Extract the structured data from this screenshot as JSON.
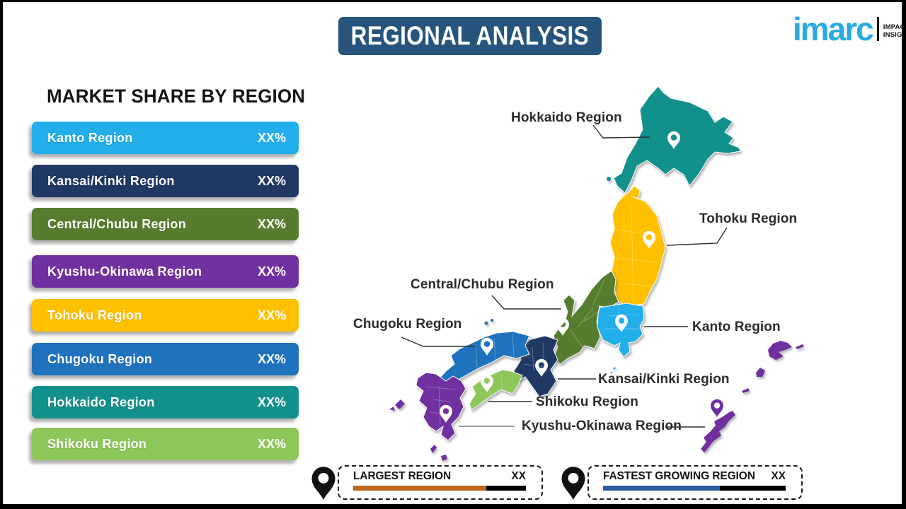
{
  "header": {
    "title": "REGIONAL ANALYSIS",
    "title_bg": "#26547C"
  },
  "brand": {
    "wordmark": "imarc",
    "wordmark_color": "#29ABE2",
    "tagline_line1": "IMPACTFUL",
    "tagline_line2": "INSIGHTS"
  },
  "market_share": {
    "heading": "MARKET SHARE BY REGION",
    "items": [
      {
        "label": "Kanto Region",
        "value": "XX%",
        "color": "#21AEEA"
      },
      {
        "label": "Kansai/Kinki Region",
        "value": "XX%",
        "color": "#1F3864"
      },
      {
        "label": "Central/Chubu Region",
        "value": "XX%",
        "color": "#567D2E"
      },
      {
        "label": "Kyushu-Okinawa Region",
        "value": "XX%",
        "color": "#7030A0"
      },
      {
        "label": "Tohoku Region",
        "value": "XX%",
        "color": "#FFC000"
      },
      {
        "label": "Chugoku Region",
        "value": "XX%",
        "color": "#1F72BE"
      },
      {
        "label": "Hokkaido Region",
        "value": "XX%",
        "color": "#12918C"
      },
      {
        "label": "Shikoku Region",
        "value": "XX%",
        "color": "#8DC75A"
      }
    ]
  },
  "map": {
    "regions": {
      "hokkaido": {
        "name": "Hokkaido Region",
        "color": "#12918C"
      },
      "tohoku": {
        "name": "Tohoku Region",
        "color": "#FFC000"
      },
      "kanto": {
        "name": "Kanto Region",
        "color": "#21AEEA"
      },
      "chubu": {
        "name": "Central/Chubu Region",
        "color": "#567D2E"
      },
      "kansai": {
        "name": "Kansai/Kinki Region",
        "color": "#1F3864"
      },
      "chugoku": {
        "name": "Chugoku Region",
        "color": "#1F72BE"
      },
      "shikoku": {
        "name": "Shikoku Region",
        "color": "#8DC75A"
      },
      "kyushu_okinawa": {
        "name": "Kyushu-Okinawa Region",
        "color": "#7030A0"
      }
    }
  },
  "legend": {
    "largest": {
      "label": "LARGEST REGION",
      "value": "XX",
      "bar_color": "#C0651B",
      "bar_fill_pct": 77
    },
    "fastest": {
      "label": "FASTEST GROWING REGION",
      "value": "XX",
      "bar_color": "#2E5D9E",
      "bar_fill_pct": 64
    }
  }
}
